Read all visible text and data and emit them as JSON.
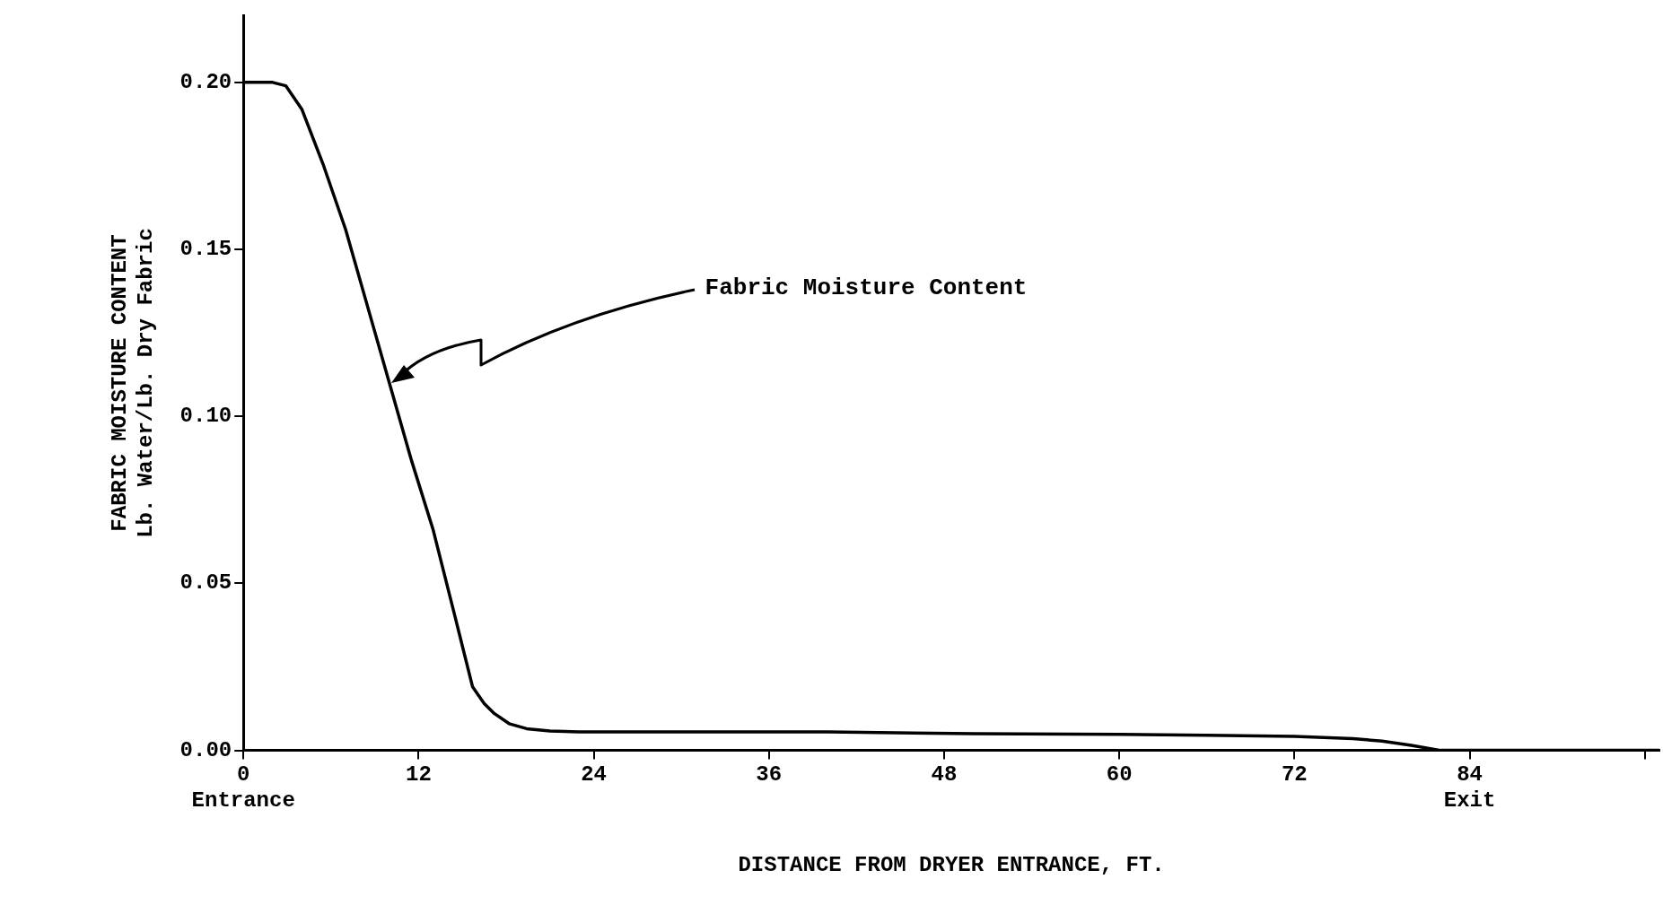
{
  "chart_data": {
    "type": "line",
    "xlabel": "DISTANCE FROM DRYER ENTRANCE, FT.",
    "ylabel": "FABRIC MOISTURE CONTENT\nLb. Water/Lb. Dry Fabric",
    "x": [
      0,
      2,
      2.9,
      4,
      5.5,
      7,
      8.5,
      10,
      11.5,
      13,
      14.5,
      15.7,
      16.5,
      17.2,
      18.2,
      19.4,
      21,
      23,
      30,
      40,
      50,
      60,
      66,
      72,
      76,
      78,
      80,
      82,
      90,
      97
    ],
    "series": [
      {
        "color": "#000000",
        "values": [
          0.2,
          0.2,
          0.199,
          0.192,
          0.175,
          0.156,
          0.133,
          0.11,
          0.087,
          0.066,
          0.04,
          0.019,
          0.014,
          0.011,
          0.008,
          0.0065,
          0.0058,
          0.0055,
          0.0055,
          0.0055,
          0.005,
          0.0048,
          0.0045,
          0.0042,
          0.0035,
          0.0028,
          0.0015,
          0,
          0,
          0
        ]
      }
    ],
    "xlim": [
      0,
      97
    ],
    "xticks": [
      {
        "value": 0,
        "label": "0\nEntrance"
      },
      12,
      24,
      36,
      48,
      60,
      72,
      {
        "value": 84,
        "label": "84\nExit"
      },
      {
        "value": 96,
        "label": null
      }
    ],
    "ylim": [
      0,
      0.22
    ],
    "yticks": [
      {
        "value": 0,
        "label": "0.00"
      },
      {
        "value": 0.05,
        "label": "0.05"
      },
      {
        "value": 0.1,
        "label": "0.10"
      },
      {
        "value": 0.15,
        "label": "0.15"
      },
      {
        "value": 0.2,
        "label": "0.20"
      }
    ],
    "grid": false,
    "legend": false,
    "marker": "none",
    "line_style": "solid",
    "annotations": [
      "Fabric Moisture Content"
    ]
  }
}
